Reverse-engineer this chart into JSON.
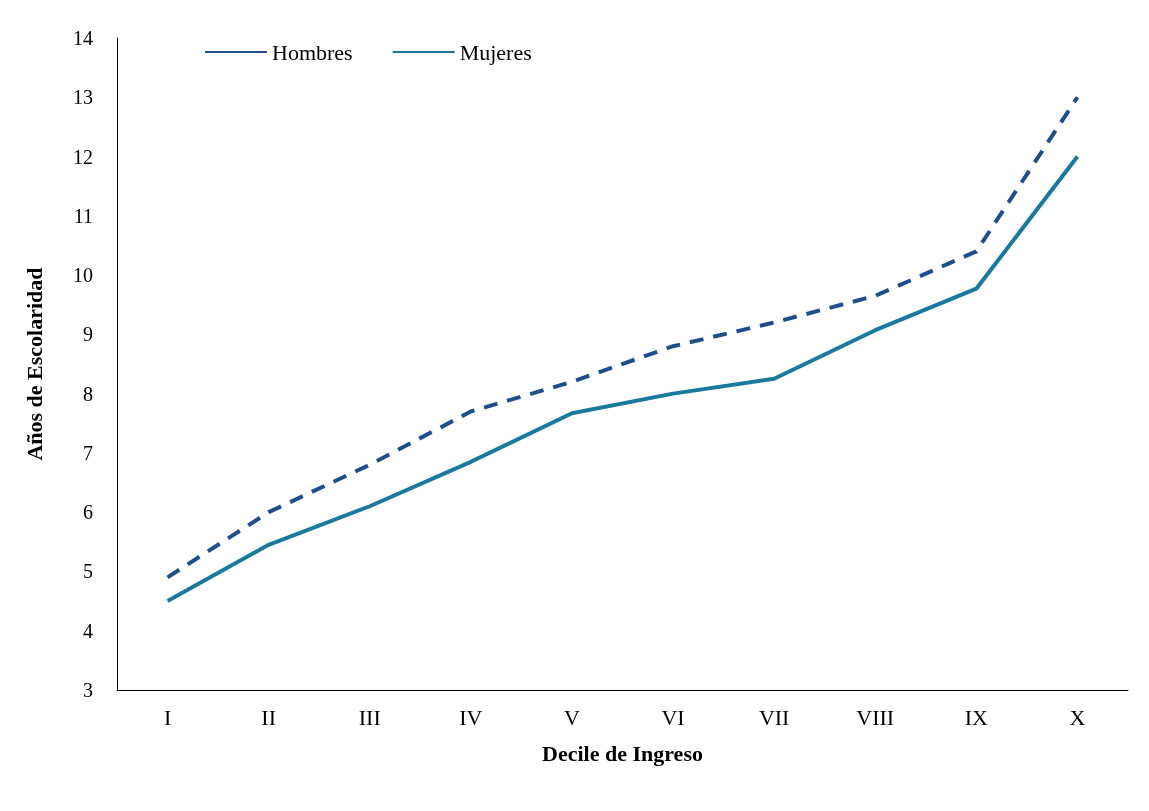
{
  "chart_data": {
    "type": "line",
    "xlabel": "Decile de Ingreso",
    "ylabel": "Años de Escolaridad",
    "categories": [
      "I",
      "II",
      "III",
      "IV",
      "V",
      "VI",
      "VII",
      "VIII",
      "IX",
      "X"
    ],
    "series": [
      {
        "name": "Hombres",
        "color": "#1f4e8c",
        "line_style": "dashed",
        "values": [
          4.9,
          6.0,
          6.8,
          7.7,
          8.2,
          8.8,
          9.2,
          9.65,
          10.4,
          13.0
        ]
      },
      {
        "name": "Mujeres",
        "color": "#1a7a9e",
        "line_style": "solid",
        "values": [
          4.5,
          5.45,
          6.1,
          6.85,
          7.67,
          8.0,
          8.25,
          9.07,
          9.77,
          12.0
        ]
      }
    ],
    "ylim": [
      3,
      14
    ],
    "yticks": [
      3,
      4,
      5,
      6,
      7,
      8,
      9,
      10,
      11,
      12,
      13,
      14
    ],
    "grid": false,
    "legend": "top left",
    "marker": "none"
  }
}
